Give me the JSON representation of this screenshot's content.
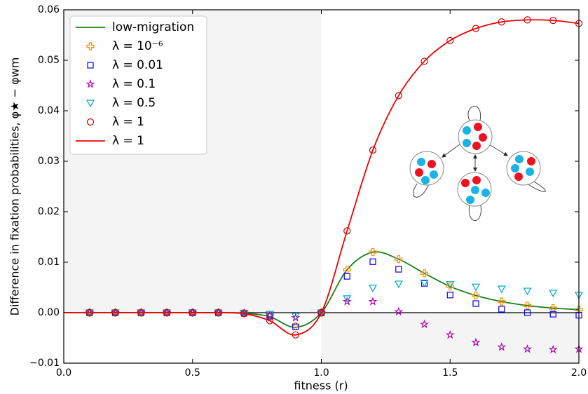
{
  "chart_data": {
    "type": "scatter",
    "xlabel": "fitness (r)",
    "ylabel": "Difference in fixation probabilities, φ★ − φwm",
    "xlim": [
      0,
      2
    ],
    "ylim": [
      -0.01,
      0.06
    ],
    "xticks": [
      {
        "value": 0,
        "label": "0.0"
      },
      0.5,
      {
        "value": 1,
        "label": "1.0"
      },
      1.5,
      {
        "value": 2,
        "label": "2.0"
      }
    ],
    "yticks": [
      {
        "value": -0.01,
        "label": "−0.01"
      },
      {
        "value": 0,
        "label": "0.00"
      },
      0.01,
      0.02,
      0.03,
      0.04,
      0.05,
      0.06
    ],
    "hline": 0,
    "shading": [
      {
        "xlim": [
          0,
          1
        ],
        "ylim": [
          0,
          0.06
        ],
        "color": "#f4f4f4"
      },
      {
        "xlim": [
          1,
          2
        ],
        "ylim": [
          -0.01,
          0
        ],
        "color": "#f4f4f4"
      }
    ],
    "legend": "upper left",
    "series": [
      {
        "name": "low-migration",
        "marker": "line",
        "color": "#1a801a",
        "x": [
          0,
          0.1,
          0.2,
          0.3,
          0.4,
          0.5,
          0.6,
          0.7,
          0.8,
          0.9,
          1.0,
          1.1,
          1.2,
          1.3,
          1.4,
          1.5,
          1.6,
          1.7,
          1.8,
          1.9,
          2.0
        ],
        "values": [
          0,
          0,
          0,
          0,
          0,
          0,
          0,
          -0.0001,
          -0.0008,
          -0.0029,
          0,
          0.0085,
          0.012,
          0.0106,
          0.0078,
          0.0052,
          0.0034,
          0.0022,
          0.0014,
          0.0009,
          0.0006
        ]
      },
      {
        "name": "λ = 10⁻⁶",
        "marker": "plus",
        "color": "#ff8c00",
        "x": [
          0.1,
          0.2,
          0.3,
          0.4,
          0.5,
          0.6,
          0.7,
          0.8,
          0.9,
          1.0,
          1.1,
          1.2,
          1.3,
          1.4,
          1.5,
          1.6,
          1.7,
          1.8,
          1.9,
          2.0
        ],
        "values": [
          0,
          0,
          0,
          0,
          0,
          0,
          -0.0001,
          -0.0007,
          -0.0027,
          0,
          0.0085,
          0.012,
          0.0106,
          0.0078,
          0.0052,
          0.0034,
          0.0022,
          0.0014,
          0.0009,
          0.0006
        ]
      },
      {
        "name": "λ = 0.01",
        "marker": "square",
        "color": "#0000ff",
        "x": [
          0.1,
          0.2,
          0.3,
          0.4,
          0.5,
          0.6,
          0.7,
          0.8,
          0.9,
          1.0,
          1.1,
          1.2,
          1.3,
          1.4,
          1.5,
          1.6,
          1.7,
          1.8,
          1.9,
          2.0
        ],
        "values": [
          0,
          0,
          0,
          0,
          0,
          0,
          -0.0001,
          -0.0007,
          -0.0028,
          0,
          0.0072,
          0.0101,
          0.0086,
          0.0058,
          0.0035,
          0.0018,
          0.0007,
          0,
          -0.0003,
          -0.0005
        ]
      },
      {
        "name": "λ = 0.1",
        "marker": "star",
        "color": "#b000b0",
        "x": [
          0.1,
          0.2,
          0.3,
          0.4,
          0.5,
          0.6,
          0.7,
          0.8,
          0.9,
          1.0,
          1.1,
          1.2,
          1.3,
          1.4,
          1.5,
          1.6,
          1.7,
          1.8,
          1.9,
          2.0
        ],
        "values": [
          0,
          0,
          0,
          0,
          0,
          0,
          -0.0001,
          -0.0005,
          -0.001,
          0,
          0.0022,
          0.0022,
          0.0002,
          -0.0023,
          -0.0044,
          -0.0059,
          -0.0068,
          -0.0072,
          -0.0073,
          -0.0072
        ]
      },
      {
        "name": "λ = 0.5",
        "marker": "triangle",
        "color": "#00aabb",
        "x": [
          0.1,
          0.2,
          0.3,
          0.4,
          0.5,
          0.6,
          0.7,
          0.8,
          0.9,
          1.0,
          1.1,
          1.2,
          1.3,
          1.4,
          1.5,
          1.6,
          1.7,
          1.8,
          1.9,
          2.0
        ],
        "values": [
          0,
          0,
          0,
          0,
          0,
          0,
          -0.0001,
          -0.0003,
          -0.0007,
          0,
          0.0028,
          0.0049,
          0.0057,
          0.0059,
          0.0056,
          0.0051,
          0.0047,
          0.0043,
          0.0039,
          0.0035
        ]
      },
      {
        "name": "λ = 1",
        "marker": "circle",
        "color": "#c00000",
        "x": [
          0.1,
          0.2,
          0.3,
          0.4,
          0.5,
          0.6,
          0.7,
          0.8,
          0.9,
          1.0,
          1.1,
          1.2,
          1.3,
          1.4,
          1.5,
          1.6,
          1.7,
          1.8,
          1.9,
          2.0
        ],
        "values": [
          0,
          0,
          0,
          0,
          0,
          0,
          -0.0002,
          -0.0016,
          -0.0044,
          0,
          0.0162,
          0.0322,
          0.043,
          0.0498,
          0.0539,
          0.0563,
          0.0576,
          0.058,
          0.0579,
          0.0573
        ]
      },
      {
        "name": "λ = 1",
        "marker": "line",
        "color": "#ee0000",
        "x": [
          0,
          0.1,
          0.2,
          0.3,
          0.4,
          0.5,
          0.6,
          0.7,
          0.8,
          0.9,
          1.0,
          1.1,
          1.2,
          1.3,
          1.4,
          1.5,
          1.6,
          1.7,
          1.8,
          1.9,
          2.0
        ],
        "values": [
          0,
          0,
          0,
          0,
          0,
          0,
          0,
          -0.0002,
          -0.0016,
          -0.0044,
          0,
          0.0162,
          0.0322,
          0.043,
          0.0498,
          0.0539,
          0.0563,
          0.0576,
          0.058,
          0.0579,
          0.0573
        ]
      }
    ]
  }
}
